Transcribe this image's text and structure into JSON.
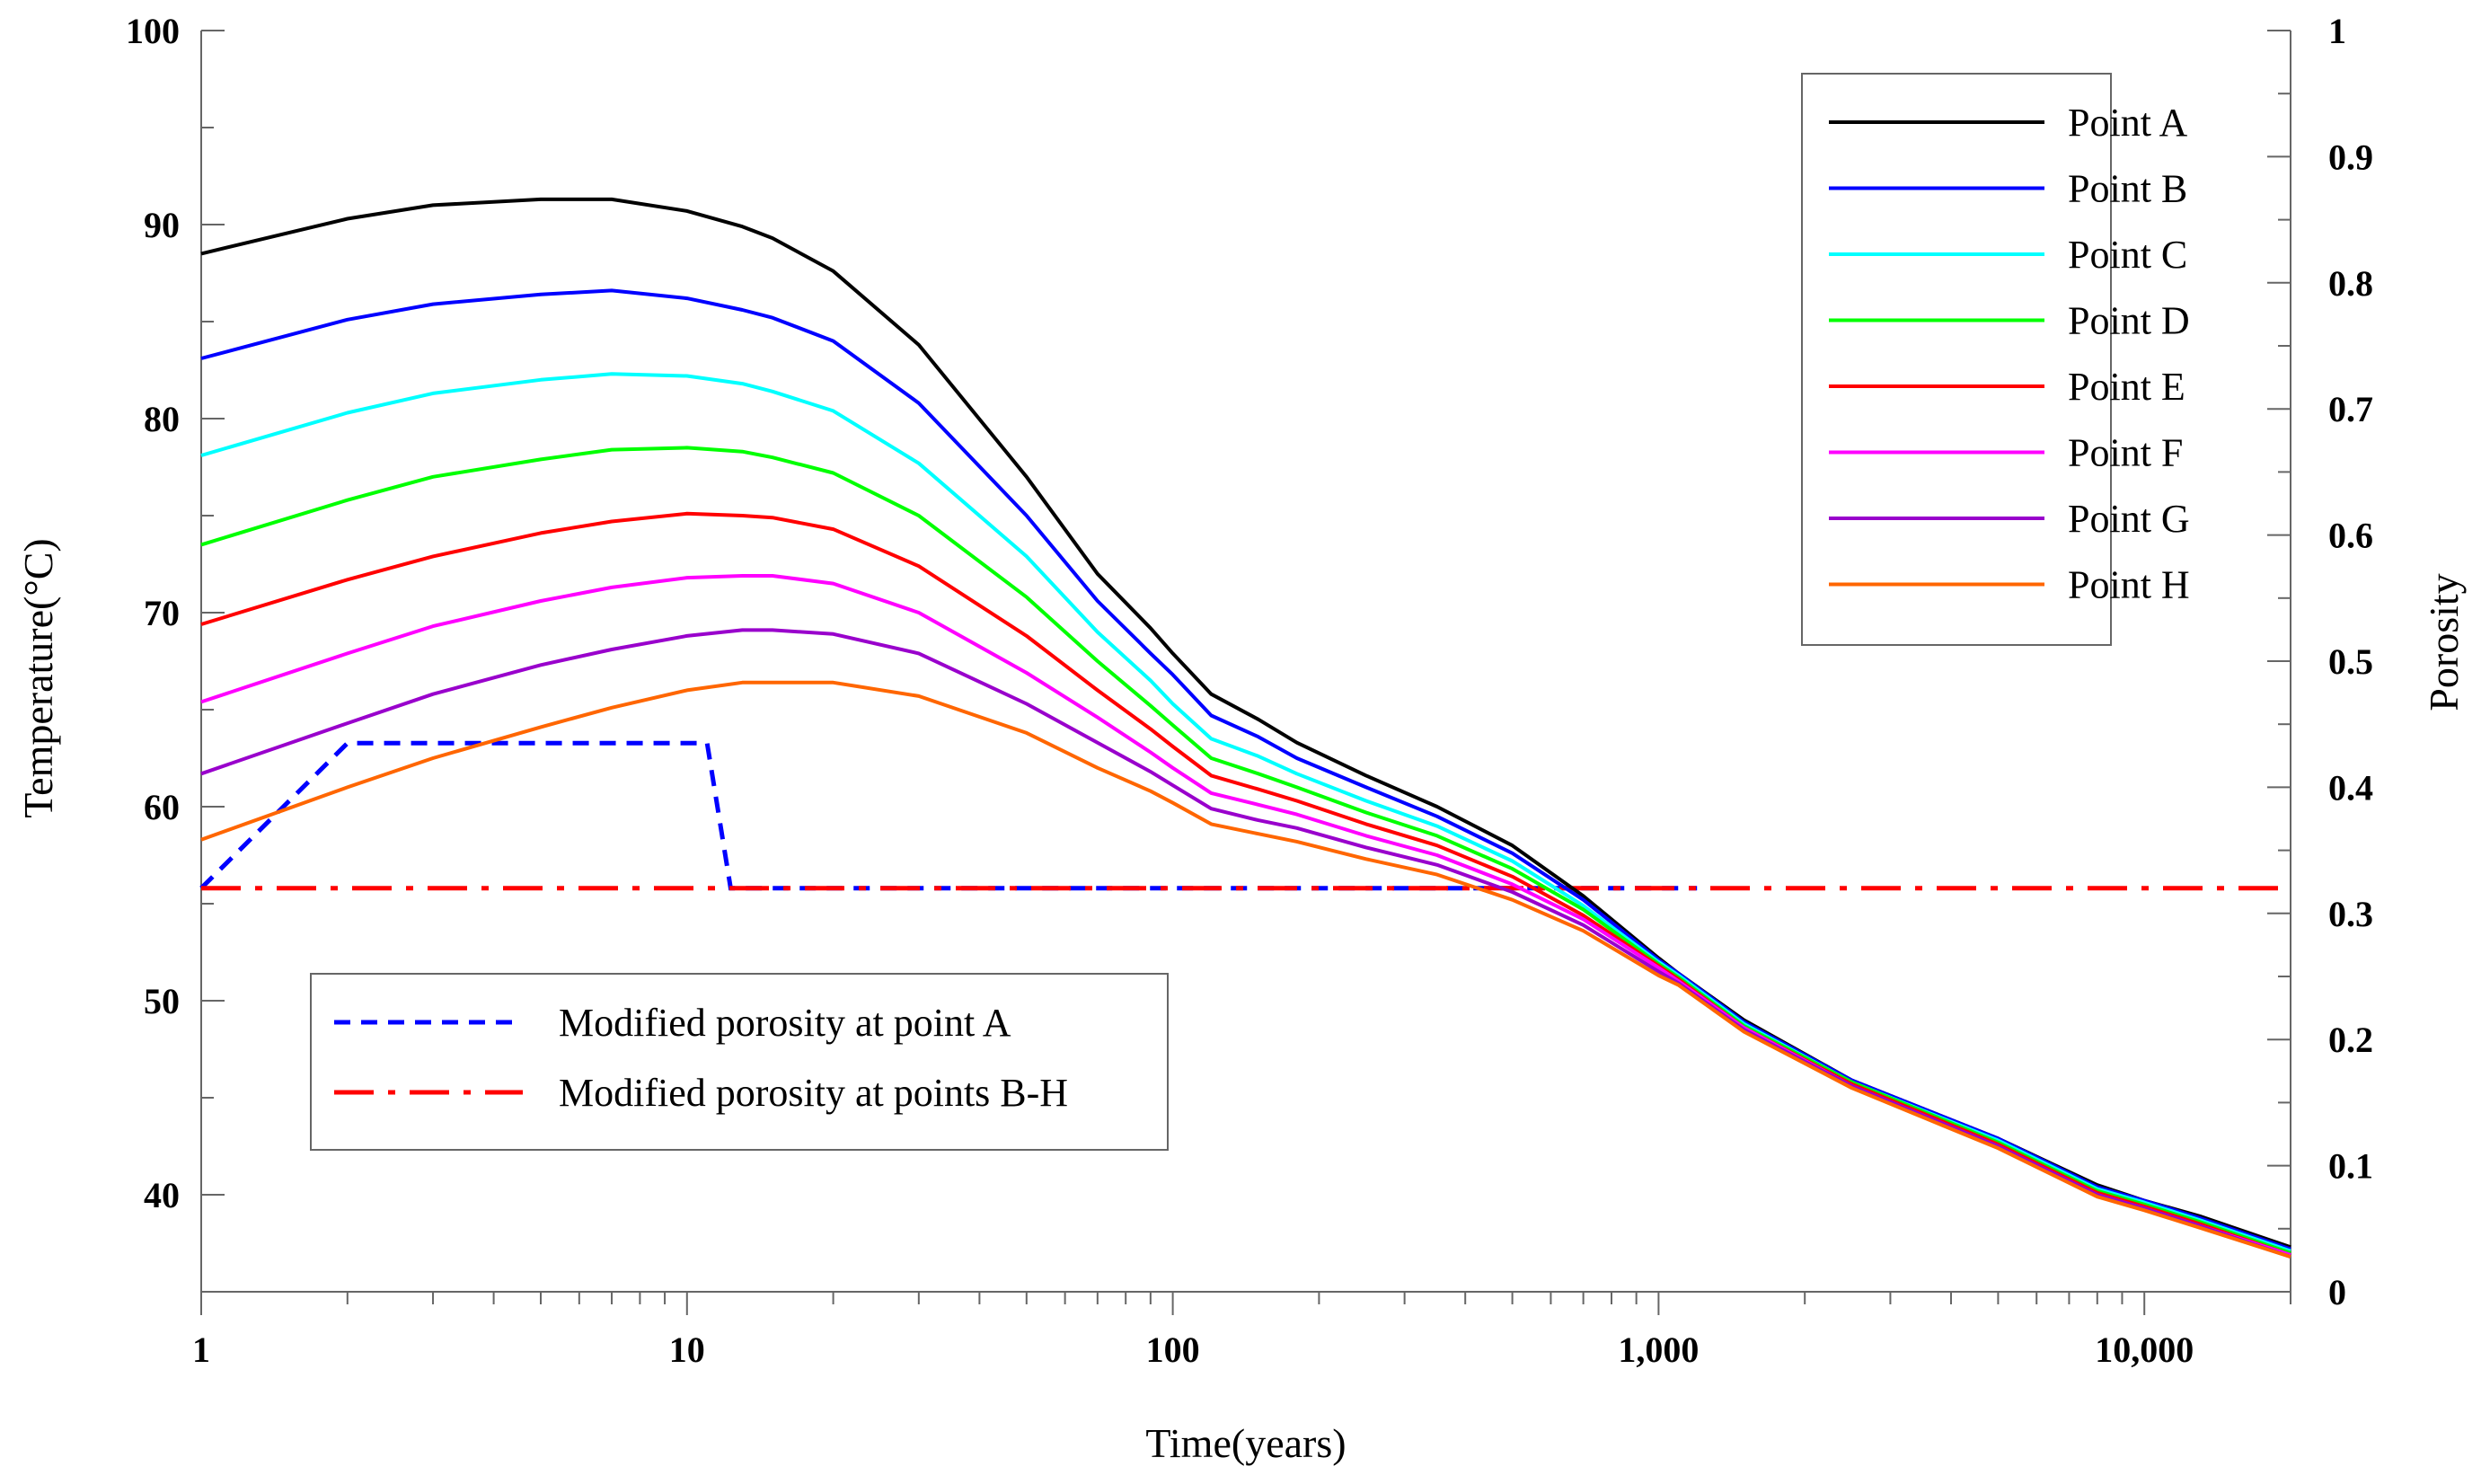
{
  "chart_data": {
    "type": "line",
    "title": "",
    "xlabel": "Time(years)",
    "ylabel": "Temperature(°C)",
    "y2label": "Porosity",
    "x_scale": "log",
    "xlim": [
      1,
      20000
    ],
    "ylim": [
      35,
      100
    ],
    "y2lim": [
      0,
      1
    ],
    "grid": false,
    "x_ticks": [
      1,
      10,
      100,
      1000,
      10000
    ],
    "x_tick_labels": [
      "1",
      "10",
      "100",
      "1,000",
      "10,000"
    ],
    "y_ticks": [
      40,
      50,
      60,
      70,
      80,
      90,
      100
    ],
    "y_tick_labels": [
      "40",
      "50",
      "60",
      "70",
      "80",
      "90",
      "100"
    ],
    "y2_ticks": [
      0,
      0.1,
      0.2,
      0.3,
      0.4,
      0.5,
      0.6,
      0.7,
      0.8,
      0.9,
      1
    ],
    "y2_tick_labels": [
      "0",
      "0.1",
      "0.2",
      "0.3",
      "0.4",
      "0.5",
      "0.6",
      "0.7",
      "0.8",
      "0.9",
      "1"
    ],
    "legend_temperature_position": "top-right",
    "legend_porosity_position": "bottom-left",
    "x": [
      1,
      2,
      3,
      5,
      7,
      10,
      13,
      15,
      20,
      30,
      50,
      70,
      90,
      100,
      120,
      150,
      180,
      250,
      350,
      500,
      700,
      1000,
      1100,
      1500,
      2500,
      5000,
      8000,
      10000,
      13000,
      20000
    ],
    "series": [
      {
        "name": "Point A",
        "color": "#000000",
        "style": "solid",
        "axis": "left",
        "values": [
          88.5,
          90.3,
          91.0,
          91.3,
          91.3,
          90.7,
          89.9,
          89.3,
          87.6,
          83.8,
          77.0,
          72.0,
          69.2,
          67.9,
          65.8,
          64.5,
          63.3,
          61.6,
          60.0,
          58.0,
          55.4,
          52.2,
          51.4,
          49.0,
          45.9,
          42.9,
          40.5,
          39.7,
          38.9,
          37.3
        ]
      },
      {
        "name": "Point B",
        "color": "#0000ff",
        "style": "solid",
        "axis": "left",
        "values": [
          83.1,
          85.1,
          85.9,
          86.4,
          86.6,
          86.2,
          85.6,
          85.2,
          84.0,
          80.8,
          75.0,
          70.6,
          67.9,
          66.8,
          64.7,
          63.6,
          62.5,
          61.0,
          59.5,
          57.6,
          55.2,
          52.1,
          51.4,
          48.9,
          45.9,
          42.9,
          40.4,
          39.7,
          38.8,
          37.2
        ]
      },
      {
        "name": "Point C",
        "color": "#00ffff",
        "style": "solid",
        "axis": "left",
        "values": [
          78.1,
          80.3,
          81.3,
          82.0,
          82.3,
          82.2,
          81.8,
          81.4,
          80.4,
          77.7,
          72.9,
          69.0,
          66.5,
          65.3,
          63.5,
          62.6,
          61.7,
          60.3,
          59.0,
          57.2,
          54.9,
          52.0,
          51.3,
          48.8,
          45.8,
          42.8,
          40.3,
          39.6,
          38.7,
          37.1
        ]
      },
      {
        "name": "Point D",
        "color": "#00ff00",
        "style": "solid",
        "axis": "left",
        "values": [
          73.5,
          75.8,
          77.0,
          77.9,
          78.4,
          78.5,
          78.3,
          78.0,
          77.2,
          75.0,
          70.8,
          67.5,
          65.2,
          64.2,
          62.5,
          61.7,
          61.0,
          59.7,
          58.5,
          56.8,
          54.7,
          51.9,
          51.2,
          48.7,
          45.8,
          42.7,
          40.2,
          39.5,
          38.6,
          37.0
        ]
      },
      {
        "name": "Point E",
        "color": "#ff0000",
        "style": "solid",
        "axis": "left",
        "values": [
          69.4,
          71.7,
          72.9,
          74.1,
          74.7,
          75.1,
          75.0,
          74.9,
          74.3,
          72.4,
          68.8,
          66.0,
          64.0,
          63.1,
          61.6,
          60.9,
          60.3,
          59.1,
          58.0,
          56.4,
          54.4,
          51.8,
          51.1,
          48.6,
          45.7,
          42.6,
          40.1,
          39.4,
          38.5,
          36.9
        ]
      },
      {
        "name": "Point F",
        "color": "#ff00ff",
        "style": "solid",
        "axis": "left",
        "values": [
          65.4,
          67.9,
          69.3,
          70.6,
          71.3,
          71.8,
          71.9,
          71.9,
          71.5,
          70.0,
          66.9,
          64.6,
          62.8,
          62.0,
          60.7,
          60.1,
          59.6,
          58.5,
          57.5,
          56.0,
          54.2,
          51.7,
          51.0,
          48.6,
          45.6,
          42.5,
          40.0,
          39.3,
          38.4,
          36.9
        ]
      },
      {
        "name": "Point G",
        "color": "#9900cc",
        "style": "solid",
        "axis": "left",
        "values": [
          61.7,
          64.3,
          65.8,
          67.3,
          68.1,
          68.8,
          69.1,
          69.1,
          68.9,
          67.9,
          65.3,
          63.3,
          61.8,
          61.1,
          59.9,
          59.3,
          58.9,
          57.9,
          57.0,
          55.6,
          53.9,
          51.5,
          50.9,
          48.5,
          45.6,
          42.5,
          40.0,
          39.3,
          38.4,
          36.8
        ]
      },
      {
        "name": "Point H",
        "color": "#ff6600",
        "style": "solid",
        "axis": "left",
        "values": [
          58.3,
          61.0,
          62.5,
          64.1,
          65.1,
          66.0,
          66.4,
          66.4,
          66.4,
          65.7,
          63.8,
          62.0,
          60.8,
          60.2,
          59.1,
          58.6,
          58.2,
          57.3,
          56.5,
          55.2,
          53.6,
          51.3,
          50.8,
          48.4,
          45.5,
          42.4,
          39.9,
          39.2,
          38.3,
          36.8
        ]
      }
    ],
    "porosity_series": [
      {
        "name": "Modified porosity at point A",
        "color": "#0000ff",
        "style": "dashed",
        "axis": "right",
        "x": [
          1,
          2,
          11,
          12.3,
          1200
        ],
        "values": [
          0.32,
          0.435,
          0.435,
          0.32,
          0.32
        ]
      },
      {
        "name": "Modified porosity at points B-H",
        "color": "#ff0000",
        "style": "dashdot",
        "axis": "right",
        "x": [
          1,
          20000
        ],
        "values": [
          0.32,
          0.32
        ]
      }
    ]
  }
}
